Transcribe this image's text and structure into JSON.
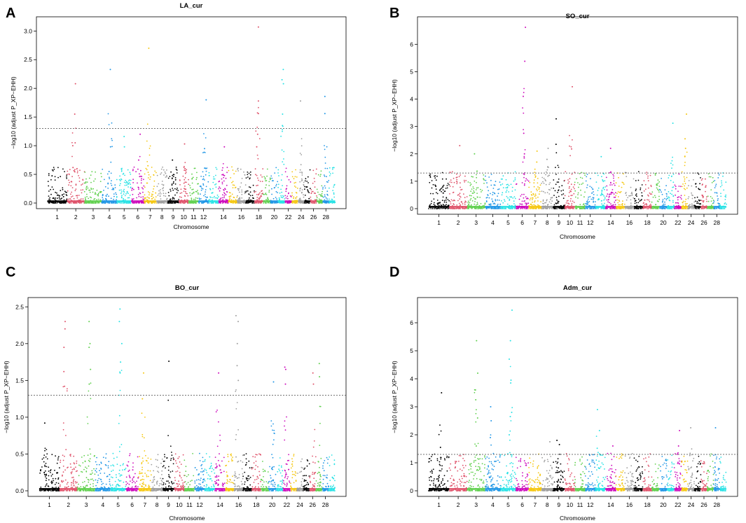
{
  "chart_data": [
    {
      "type": "scatter",
      "panel": "A",
      "title": "LA_cur",
      "xlabel": "Chromosome",
      "ylabel": "−log10 (adjust P_XP−EHH)",
      "ylim": [
        0,
        3.15
      ],
      "yticks": [
        0.0,
        0.5,
        1.0,
        1.5,
        2.0,
        2.5,
        3.0
      ],
      "ytick_labels": [
        "0.0",
        "0.5",
        "1.0",
        "1.5",
        "2.0",
        "2.5",
        "3.0"
      ],
      "threshold": 1.3,
      "xtick_labels": [
        "1",
        "2",
        "3",
        "4",
        "5",
        "6",
        "7",
        "8",
        "9",
        "10",
        "11",
        "12",
        "14",
        "16",
        "18",
        "20",
        "22",
        "24",
        "26",
        "28"
      ],
      "peaks": [
        {
          "chrom": 2,
          "values": [
            2.08,
            1.55,
            1.05,
            1.0,
            0.62
          ]
        },
        {
          "chrom": 4,
          "values": [
            2.33,
            0.98,
            0.55
          ]
        },
        {
          "chrom": 5,
          "values": [
            1.16,
            0.98
          ]
        },
        {
          "chrom": 6,
          "values": [
            1.2,
            0.75
          ]
        },
        {
          "chrom": 7,
          "values": [
            2.7,
            0.65
          ]
        },
        {
          "chrom": 9,
          "values": [
            0.75
          ]
        },
        {
          "chrom": 10,
          "values": [
            1.03,
            0.6
          ]
        },
        {
          "chrom": 12,
          "values": [
            1.8,
            0.95
          ]
        },
        {
          "chrom": 14,
          "values": [
            0.98
          ]
        },
        {
          "chrom": 18,
          "values": [
            3.07,
            1.78,
            1.56,
            1.2,
            0.98
          ]
        },
        {
          "chrom": 21,
          "values": [
            2.33,
            2.15,
            2.08,
            1.55,
            1.35
          ]
        },
        {
          "chrom": 24,
          "values": [
            1.78
          ]
        },
        {
          "chrom": 28,
          "values": [
            1.86,
            1.56
          ]
        }
      ]
    },
    {
      "type": "scatter",
      "panel": "B",
      "title": "SO_cur",
      "xlabel": "Chromosome",
      "ylabel": "−log10 (adjust P_XP−EHH)",
      "ylim": [
        0,
        6.8
      ],
      "yticks": [
        0,
        1,
        2,
        3,
        4,
        5,
        6
      ],
      "ytick_labels": [
        "0",
        "1",
        "2",
        "3",
        "4",
        "5",
        "6"
      ],
      "threshold": 1.3,
      "xtick_labels": [
        "1",
        "2",
        "3",
        "4",
        "5",
        "6",
        "7",
        "8",
        "9",
        "10",
        "11",
        "12",
        "14",
        "16",
        "18",
        "20",
        "22",
        "24",
        "26",
        "28"
      ],
      "peaks": [
        {
          "chrom": 2,
          "values": [
            2.3
          ]
        },
        {
          "chrom": 3,
          "values": [
            2.0
          ]
        },
        {
          "chrom": 6,
          "values": [
            6.62,
            5.38,
            4.1,
            2.75,
            2.0,
            1.85
          ]
        },
        {
          "chrom": 7,
          "values": [
            2.1,
            1.7
          ]
        },
        {
          "chrom": 8,
          "values": [
            2.2,
            1.8
          ]
        },
        {
          "chrom": 9,
          "values": [
            3.28,
            2.35
          ]
        },
        {
          "chrom": 10,
          "values": [
            4.45,
            2.18
          ]
        },
        {
          "chrom": 13,
          "values": [
            1.9
          ]
        },
        {
          "chrom": 14,
          "values": [
            2.2
          ]
        },
        {
          "chrom": 21,
          "values": [
            3.12
          ]
        },
        {
          "chrom": 23,
          "values": [
            3.45,
            2.55,
            2.2,
            1.9
          ]
        }
      ]
    },
    {
      "type": "scatter",
      "panel": "C",
      "title": "BO_cur",
      "xlabel": "Chromosome",
      "ylabel": "−log10 (adjust P_XP−EHH)",
      "ylim": [
        0,
        2.55
      ],
      "yticks": [
        0.0,
        0.5,
        1.0,
        1.5,
        2.0,
        2.5
      ],
      "ytick_labels": [
        "0.0",
        "0.5",
        "1.0",
        "1.5",
        "2.0",
        "2.5"
      ],
      "threshold": 1.3,
      "xtick_labels": [
        "1",
        "2",
        "3",
        "4",
        "5",
        "6",
        "7",
        "8",
        "9",
        "10",
        "11",
        "12",
        "14",
        "16",
        "18",
        "20",
        "22",
        "24",
        "26",
        "28"
      ],
      "peaks": [
        {
          "chrom": 1,
          "values": [
            0.92
          ]
        },
        {
          "chrom": 2,
          "values": [
            2.3,
            2.2,
            1.95,
            1.62,
            1.42
          ]
        },
        {
          "chrom": 3,
          "values": [
            2.3,
            2.0,
            1.95,
            1.65,
            1.45
          ]
        },
        {
          "chrom": 5,
          "values": [
            2.47,
            2.3,
            2.0,
            1.75,
            1.6
          ]
        },
        {
          "chrom": 7,
          "values": [
            1.6,
            1.25
          ]
        },
        {
          "chrom": 9,
          "values": [
            1.76
          ]
        },
        {
          "chrom": 14,
          "values": [
            1.6
          ]
        },
        {
          "chrom": 16,
          "values": [
            2.38,
            2.3,
            2.0,
            1.7,
            1.5
          ]
        },
        {
          "chrom": 20,
          "values": [
            1.48
          ]
        },
        {
          "chrom": 22,
          "values": [
            1.68,
            1.65,
            1.45
          ]
        },
        {
          "chrom": 26,
          "values": [
            1.6,
            1.45
          ]
        },
        {
          "chrom": 27,
          "values": [
            1.73,
            1.55
          ]
        }
      ]
    },
    {
      "type": "scatter",
      "panel": "D",
      "title": "Adm_cur",
      "xlabel": "Chromosome",
      "ylabel": "−log10 (adjust P_XP−EHH)",
      "ylim": [
        0,
        6.7
      ],
      "yticks": [
        0,
        1,
        2,
        3,
        4,
        5,
        6
      ],
      "ytick_labels": [
        "0",
        "1",
        "2",
        "3",
        "4",
        "5",
        "6"
      ],
      "threshold": 1.3,
      "xtick_labels": [
        "1",
        "2",
        "3",
        "4",
        "5",
        "6",
        "7",
        "8",
        "9",
        "10",
        "11",
        "12",
        "14",
        "16",
        "18",
        "20",
        "22",
        "24",
        "26",
        "28"
      ],
      "peaks": [
        {
          "chrom": 1,
          "values": [
            3.5,
            1.55
          ]
        },
        {
          "chrom": 3,
          "values": [
            5.36,
            4.2,
            3.6,
            3.25,
            2.6,
            1.6
          ]
        },
        {
          "chrom": 4,
          "values": [
            3.0,
            2.5,
            1.9
          ]
        },
        {
          "chrom": 5,
          "values": [
            6.45,
            5.36,
            4.7,
            3.95,
            3.85,
            2.8,
            2.65,
            2.0
          ]
        },
        {
          "chrom": 8,
          "values": [
            1.75
          ]
        },
        {
          "chrom": 9,
          "values": [
            1.8,
            1.65
          ]
        },
        {
          "chrom": 13,
          "values": [
            2.9,
            2.15
          ]
        },
        {
          "chrom": 14,
          "values": [
            1.6
          ]
        },
        {
          "chrom": 22,
          "values": [
            2.15,
            1.6
          ]
        },
        {
          "chrom": 24,
          "values": [
            2.25
          ]
        },
        {
          "chrom": 28,
          "values": [
            2.25
          ]
        }
      ]
    }
  ],
  "colors": {
    "palette": [
      "#000000",
      "#DF536B",
      "#61D04F",
      "#2297E6",
      "#28E2E5",
      "#CD0BBC",
      "#F5C710",
      "#9E9E9E"
    ],
    "threshold_line": "#444444",
    "axis": "#000000"
  }
}
